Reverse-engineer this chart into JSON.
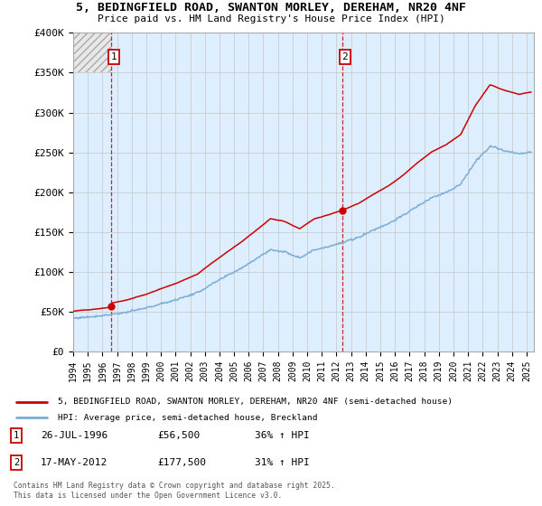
{
  "title": "5, BEDINGFIELD ROAD, SWANTON MORLEY, DEREHAM, NR20 4NF",
  "subtitle": "Price paid vs. HM Land Registry's House Price Index (HPI)",
  "ylim": [
    0,
    400000
  ],
  "xlim_start": 1994.0,
  "xlim_end": 2025.5,
  "yticks": [
    0,
    50000,
    100000,
    150000,
    200000,
    250000,
    300000,
    350000,
    400000
  ],
  "ytick_labels": [
    "£0",
    "£50K",
    "£100K",
    "£150K",
    "£200K",
    "£250K",
    "£300K",
    "£350K",
    "£400K"
  ],
  "sale1_x": 1996.57,
  "sale1_y": 56500,
  "sale1_label": "26-JUL-1996",
  "sale1_price": "£56,500",
  "sale1_hpi": "36% ↑ HPI",
  "sale2_x": 2012.38,
  "sale2_y": 177500,
  "sale2_label": "17-MAY-2012",
  "sale2_price": "£177,500",
  "sale2_hpi": "31% ↑ HPI",
  "red_line_color": "#cc0000",
  "blue_line_color": "#7aadd4",
  "vline_color": "#cc0000",
  "grid_color": "#cccccc",
  "plot_bg_color": "#ddeeff",
  "legend_line1": "5, BEDINGFIELD ROAD, SWANTON MORLEY, DEREHAM, NR20 4NF (semi-detached house)",
  "legend_line2": "HPI: Average price, semi-detached house, Breckland",
  "copyright": "Contains HM Land Registry data © Crown copyright and database right 2025.\nThis data is licensed under the Open Government Licence v3.0.",
  "background_color": "#ffffff"
}
